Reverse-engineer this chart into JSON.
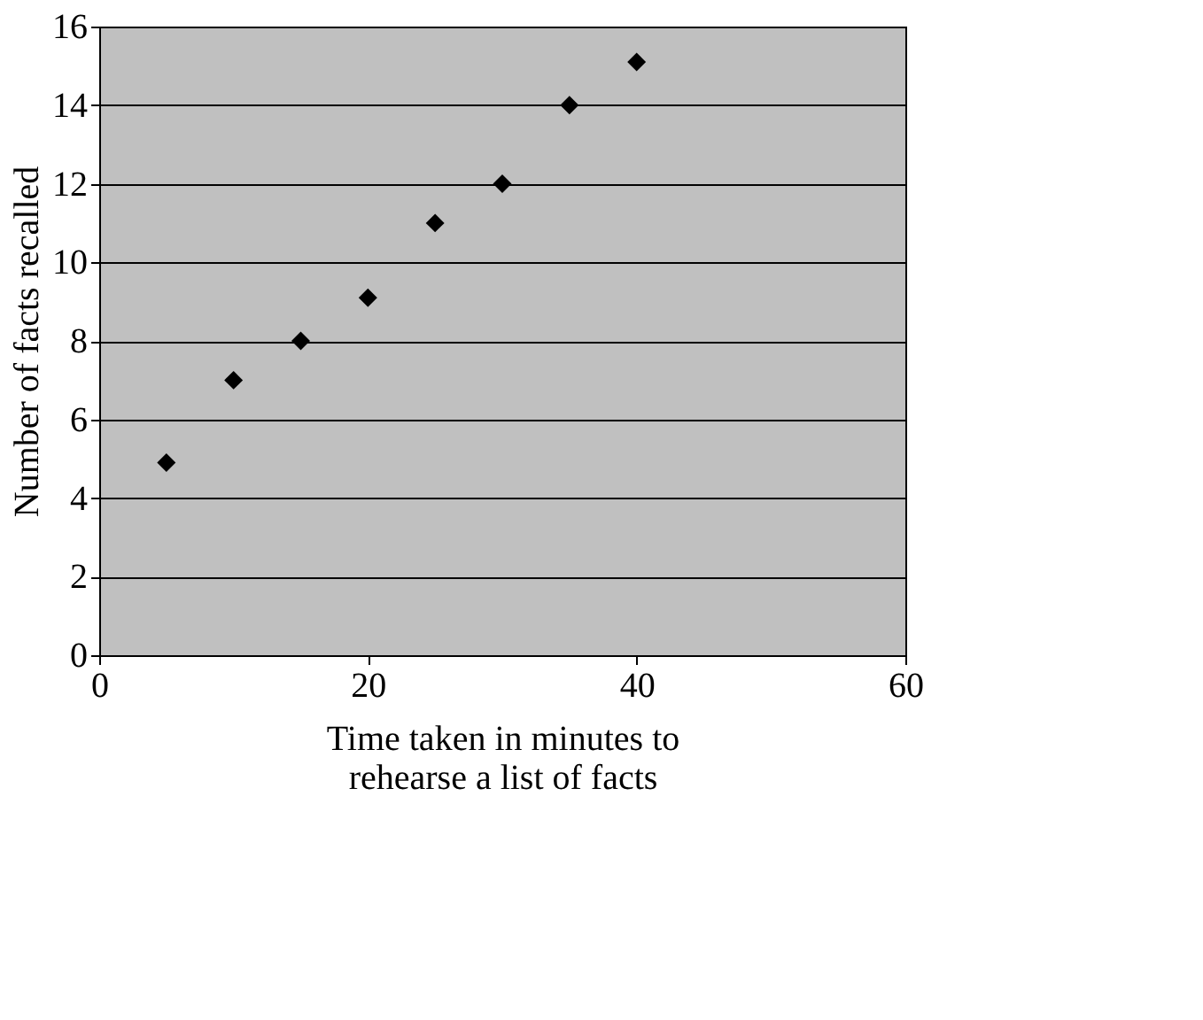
{
  "chart_data": {
    "type": "scatter",
    "xlabel": "Time taken in minutes to\nrehearse a list of facts",
    "ylabel": "Number of facts recalled",
    "x": [
      5,
      10,
      15,
      20,
      25,
      30,
      35,
      40
    ],
    "series": [
      {
        "color": "#000000",
        "values": [
          4.9,
          7.0,
          8.0,
          9.1,
          11.0,
          12.0,
          14.0,
          15.1
        ]
      }
    ],
    "xlim": [
      0,
      60
    ],
    "xticks": [
      0,
      20,
      40,
      60
    ],
    "ylim": [
      0,
      16
    ],
    "yticks": [
      0,
      2,
      4,
      6,
      8,
      10,
      12,
      14,
      16
    ],
    "grid": "y",
    "marker": "diamond"
  }
}
